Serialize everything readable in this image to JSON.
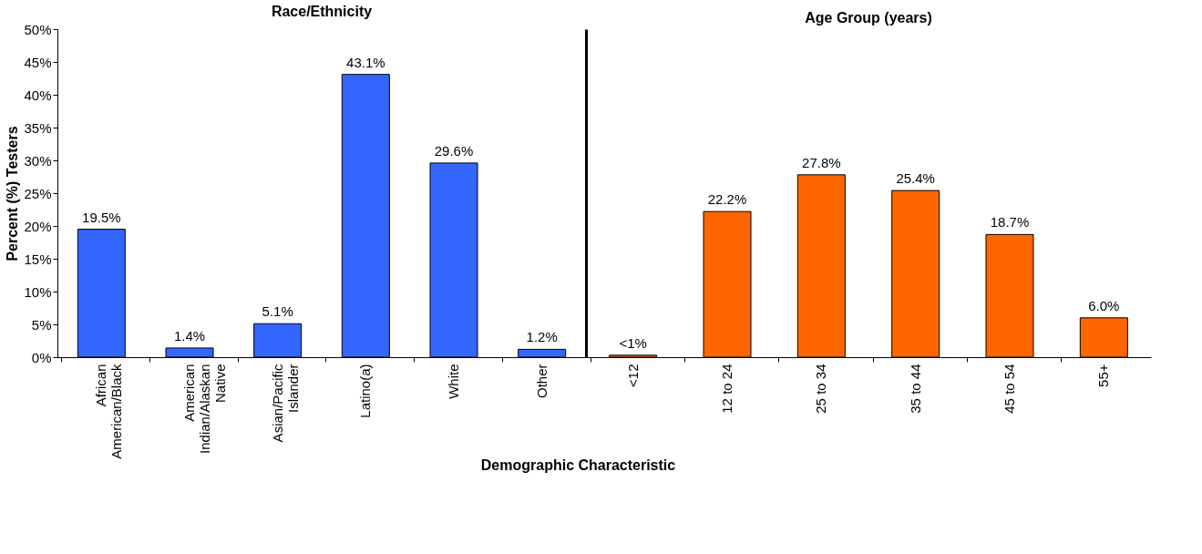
{
  "chart_data": [
    {
      "type": "bar",
      "title": "Race/Ethnicity",
      "xlabel": "Demographic Characteristic",
      "ylabel": "Percent (%) Testers",
      "categories": [
        "African American/Black",
        "American Indian/Alaskan Native",
        "Asian/Pacific Islander",
        "Latino(a)",
        "White",
        "Other"
      ],
      "series": [
        {
          "color": "#3366ff",
          "values": [
            19.5,
            1.4,
            5.1,
            43.1,
            29.6,
            1.2
          ],
          "value_labels": [
            "19.5%",
            "1.4%",
            "5.1%",
            "43.1%",
            "29.6%",
            "1.2%"
          ]
        }
      ],
      "ylim": [
        0,
        50
      ],
      "yticks": [
        {
          "value": 0,
          "label": "0%"
        },
        {
          "value": 5,
          "label": "5%"
        },
        {
          "value": 10,
          "label": "10%"
        },
        {
          "value": 15,
          "label": "15%"
        },
        {
          "value": 20,
          "label": "20%"
        },
        {
          "value": 25,
          "label": "25%"
        },
        {
          "value": 30,
          "label": "30%"
        },
        {
          "value": 35,
          "label": "35%"
        },
        {
          "value": 40,
          "label": "40%"
        },
        {
          "value": 45,
          "label": "45%"
        },
        {
          "value": 50,
          "label": "50%"
        }
      ],
      "grid": false
    },
    {
      "type": "bar",
      "title": "Age Group (years)",
      "categories": [
        "<12",
        "12 to 24",
        "25 to 34",
        "35 to 44",
        "45 to 54",
        "55+"
      ],
      "series": [
        {
          "color": "#ff6600",
          "values": [
            0.3,
            22.2,
            27.8,
            25.4,
            18.7,
            6.0
          ],
          "value_labels": [
            "<1%",
            "22.2%",
            "27.8%",
            "25.4%",
            "18.7%",
            "6.0%"
          ]
        }
      ],
      "ylim": [
        0,
        50
      ],
      "tick_labels": "x",
      "grid": false
    }
  ]
}
